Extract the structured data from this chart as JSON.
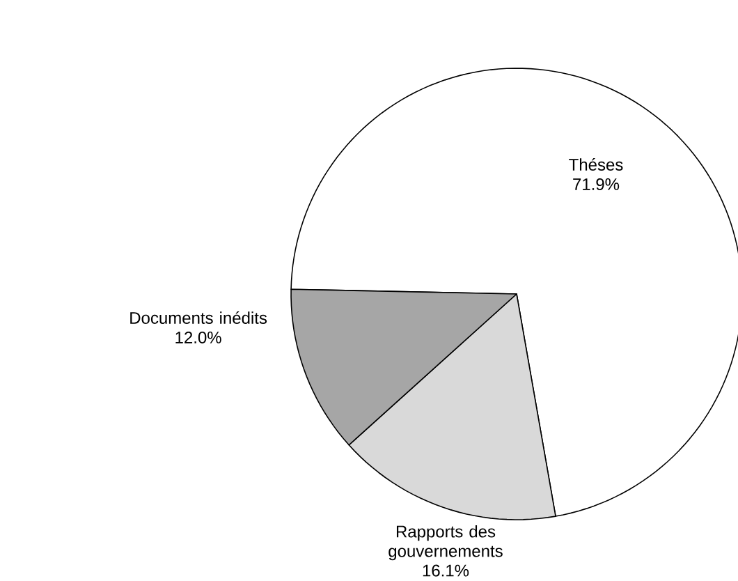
{
  "chart_data": {
    "type": "pie",
    "categories": [
      "Théses",
      "Rapports des gouvernements",
      "Documents inédits"
    ],
    "values": [
      71.9,
      16.1,
      12.0
    ],
    "value_labels": [
      "71.9%",
      "16.1%",
      "12.0%"
    ],
    "colors": [
      "#ffffff",
      "#d9d9d9",
      "#a6a6a6"
    ]
  }
}
